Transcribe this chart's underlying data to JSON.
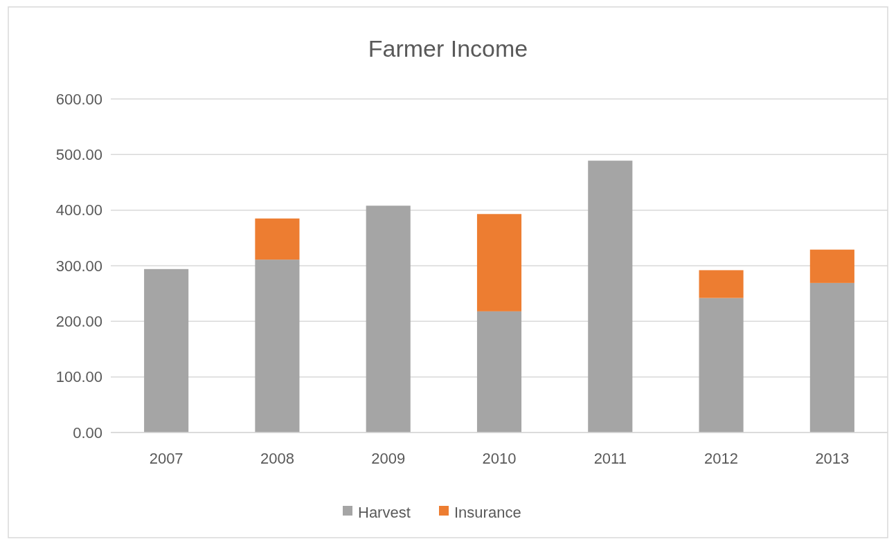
{
  "chart_data": {
    "type": "bar",
    "title": "Farmer Income",
    "categories": [
      "2007",
      "2008",
      "2009",
      "2010",
      "2011",
      "2012",
      "2013"
    ],
    "stacked": true,
    "series": [
      {
        "name": "Harvest",
        "color": "#a5a5a5",
        "values": [
          294,
          311,
          408,
          218,
          489,
          242,
          269
        ]
      },
      {
        "name": "Insurance",
        "color": "#ed7d31",
        "values": [
          0,
          74,
          0,
          175,
          0,
          50,
          60
        ]
      }
    ],
    "ylim": [
      0,
      600
    ],
    "yticks": [
      {
        "value": 0,
        "label": "0.00"
      },
      {
        "value": 100,
        "label": "100.00"
      },
      {
        "value": 200,
        "label": "200.00"
      },
      {
        "value": 300,
        "label": "300.00"
      },
      {
        "value": 400,
        "label": "400.00"
      },
      {
        "value": 500,
        "label": "500.00"
      },
      {
        "value": 600,
        "label": "600.00"
      }
    ],
    "grid": "y",
    "legend": "bottom"
  }
}
